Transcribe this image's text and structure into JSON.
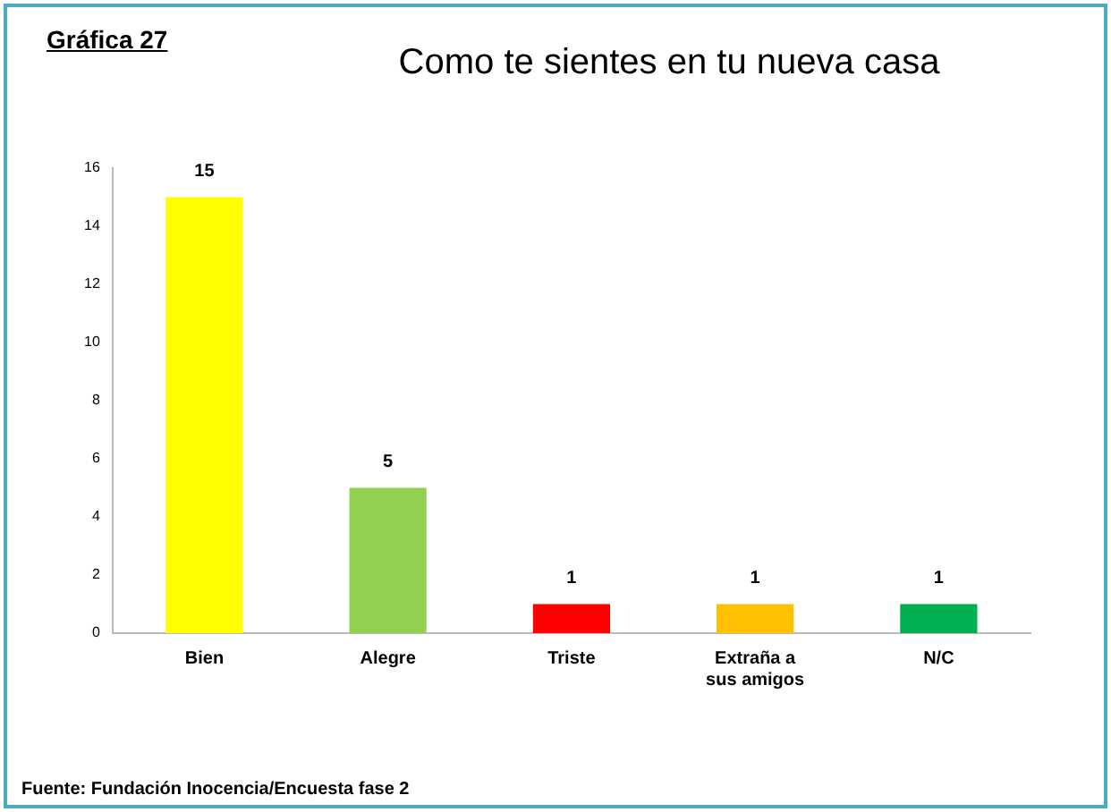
{
  "chart_data": {
    "type": "bar",
    "title": "Como te sientes en tu nueva casa",
    "categories": [
      "Bien",
      "Alegre",
      "Triste",
      "Extraña a sus amigos",
      "N/C"
    ],
    "values": [
      15,
      5,
      1,
      1,
      1
    ],
    "colors": [
      "#ffff00",
      "#92d050",
      "#ff0000",
      "#ffc000",
      "#00b050"
    ],
    "ylim": [
      0,
      16
    ],
    "yticks": [
      0,
      2,
      4,
      6,
      8,
      10,
      12,
      14,
      16
    ],
    "grid": false,
    "data_labels": true,
    "annotations": [
      "Gráfica 27",
      "Fuente: Fundación Inocencia/Encuesta fase 2"
    ]
  }
}
